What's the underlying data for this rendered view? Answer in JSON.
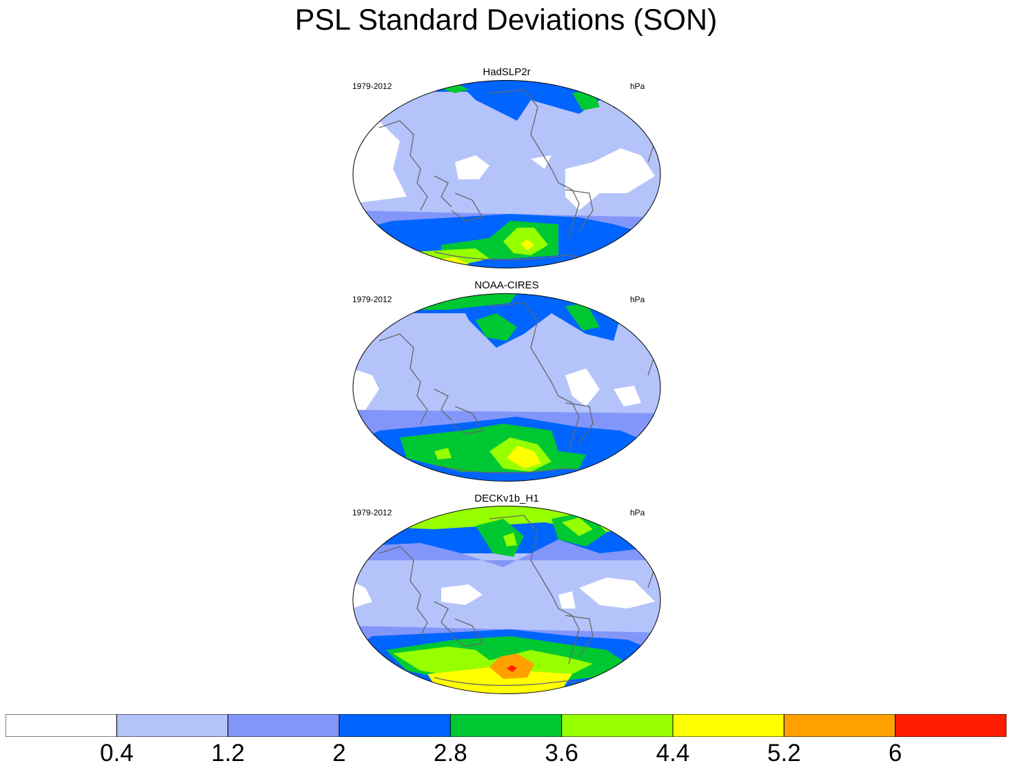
{
  "title": "PSL Standard Deviations (SON)",
  "panels": [
    {
      "name": "HadSLP2r",
      "period": "1979-2012",
      "units": "hPa"
    },
    {
      "name": "NOAA-CIRES",
      "period": "1979-2012",
      "units": "hPa"
    },
    {
      "name": "DECKv1b_H1",
      "period": "1979-2012",
      "units": "hPa"
    }
  ],
  "colorbar": {
    "labels": [
      "0.4",
      "1.2",
      "2",
      "2.8",
      "3.6",
      "4.4",
      "5.2",
      "6"
    ],
    "colors": [
      "#ffffff",
      "#b4c3fa",
      "#8296fa",
      "#0064ff",
      "#00c832",
      "#96ff00",
      "#ffff00",
      "#ffa000",
      "#ff1e00"
    ]
  }
}
